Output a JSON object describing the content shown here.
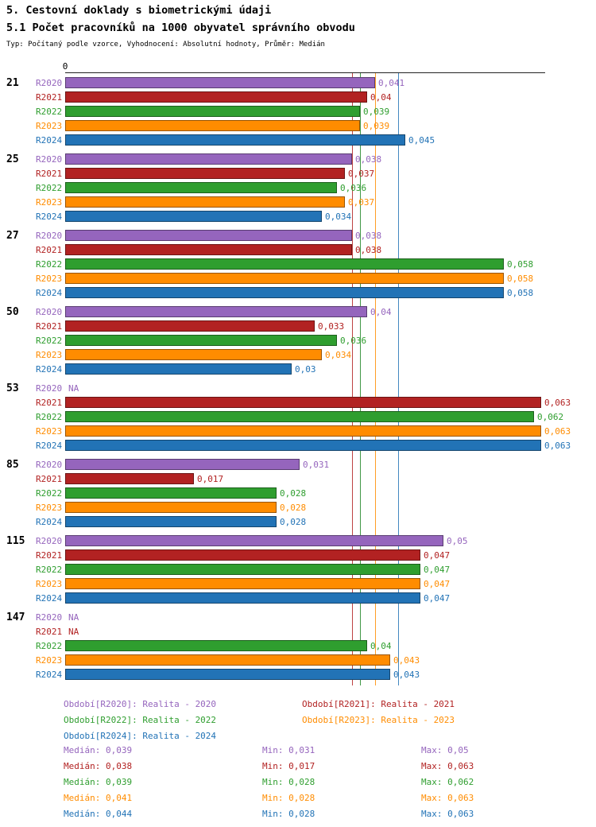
{
  "title": "5. Cestovní doklady s biometrickými údaji",
  "subtitle": "5.1 Počet pracovníků na 1000 obyvatel správního obvodu",
  "meta": "Typ: Počítaný podle vzorce, Vyhodnocení: Absolutní hodnoty, Průměr: Medián",
  "chart_data": {
    "type": "bar",
    "orientation": "horizontal",
    "x_axis": {
      "zero_label": "0",
      "xlim": [
        0,
        0.0635
      ],
      "gridlines": false
    },
    "legend_position": "bottom",
    "series": [
      {
        "name": "R2020",
        "color": "#9565bd",
        "median": 0.039
      },
      {
        "name": "R2021",
        "color": "#b22222",
        "median": 0.038
      },
      {
        "name": "R2022",
        "color": "#2f9e2f",
        "median": 0.039
      },
      {
        "name": "R2023",
        "color": "#ff8c00",
        "median": 0.041
      },
      {
        "name": "R2024",
        "color": "#2273b6",
        "median": 0.044
      }
    ],
    "groups": [
      {
        "category": "21",
        "values": [
          0.041,
          0.04,
          0.039,
          0.039,
          0.045
        ],
        "labels": [
          "0,041",
          "0,04",
          "0,039",
          "0,039",
          "0,045"
        ]
      },
      {
        "category": "25",
        "values": [
          0.038,
          0.037,
          0.036,
          0.037,
          0.034
        ],
        "labels": [
          "0,038",
          "0,037",
          "0,036",
          "0,037",
          "0,034"
        ]
      },
      {
        "category": "27",
        "values": [
          0.038,
          0.038,
          0.058,
          0.058,
          0.058
        ],
        "labels": [
          "0,038",
          "0,038",
          "0,058",
          "0,058",
          "0,058"
        ]
      },
      {
        "category": "50",
        "values": [
          0.04,
          0.033,
          0.036,
          0.034,
          0.03
        ],
        "labels": [
          "0,04",
          "0,033",
          "0,036",
          "0,034",
          "0,03"
        ]
      },
      {
        "category": "53",
        "values": [
          null,
          0.063,
          0.062,
          0.063,
          0.063
        ],
        "labels": [
          "NA",
          "0,063",
          "0,062",
          "0,063",
          "0,063"
        ]
      },
      {
        "category": "85",
        "values": [
          0.031,
          0.017,
          0.028,
          0.028,
          0.028
        ],
        "labels": [
          "0,031",
          "0,017",
          "0,028",
          "0,028",
          "0,028"
        ]
      },
      {
        "category": "115",
        "values": [
          0.05,
          0.047,
          0.047,
          0.047,
          0.047
        ],
        "labels": [
          "0,05",
          "0,047",
          "0,047",
          "0,047",
          "0,047"
        ]
      },
      {
        "category": "147",
        "values": [
          null,
          null,
          0.04,
          0.043,
          0.043
        ],
        "labels": [
          "NA",
          "NA",
          "0,04",
          "0,043",
          "0,043"
        ]
      }
    ]
  },
  "legend": {
    "items": [
      {
        "text": "Období[R2020]: Realita - 2020",
        "color": "#9565bd"
      },
      {
        "text": "Období[R2021]: Realita - 2021",
        "color": "#b22222"
      },
      {
        "text": "Období[R2022]: Realita - 2022",
        "color": "#2f9e2f"
      },
      {
        "text": "Období[R2023]: Realita - 2023",
        "color": "#ff8c00"
      },
      {
        "text": "Období[R2024]: Realita - 2024",
        "color": "#2273b6"
      }
    ]
  },
  "stats": {
    "rows": [
      {
        "color": "#9565bd",
        "median": "Medián: 0,039",
        "min": "Min: 0,031",
        "max": "Max: 0,05"
      },
      {
        "color": "#b22222",
        "median": "Medián: 0,038",
        "min": "Min: 0,017",
        "max": "Max: 0,063"
      },
      {
        "color": "#2f9e2f",
        "median": "Medián: 0,039",
        "min": "Min: 0,028",
        "max": "Max: 0,062"
      },
      {
        "color": "#ff8c00",
        "median": "Medián: 0,041",
        "min": "Min: 0,028",
        "max": "Max: 0,063"
      },
      {
        "color": "#2273b6",
        "median": "Medián: 0,044",
        "min": "Min: 0,028",
        "max": "Max: 0,063"
      }
    ]
  }
}
